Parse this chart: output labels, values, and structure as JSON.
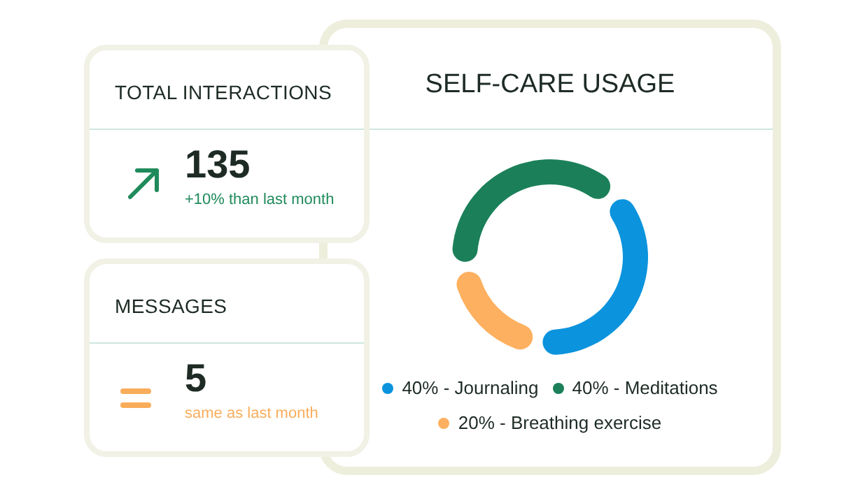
{
  "chart_data": [
    {
      "type": "other",
      "title": "TOTAL INTERACTIONS",
      "color": "#1f8a5b",
      "annotations": [
        "135",
        "+10% than last month"
      ]
    },
    {
      "type": "other",
      "title": "MESSAGES",
      "color": "#f9ad5b",
      "annotations": [
        "5",
        "same as last month"
      ]
    },
    {
      "type": "donut",
      "title": "SELF-CARE USAGE",
      "categories": [
        "40% - Journaling",
        "40% - Meditations",
        "20% - Breathing exercise"
      ],
      "values": [
        40,
        40,
        20
      ],
      "colors": [
        "#0b93dd",
        "#1b8059",
        "#fdb05f"
      ],
      "legend": "bottom"
    }
  ]
}
